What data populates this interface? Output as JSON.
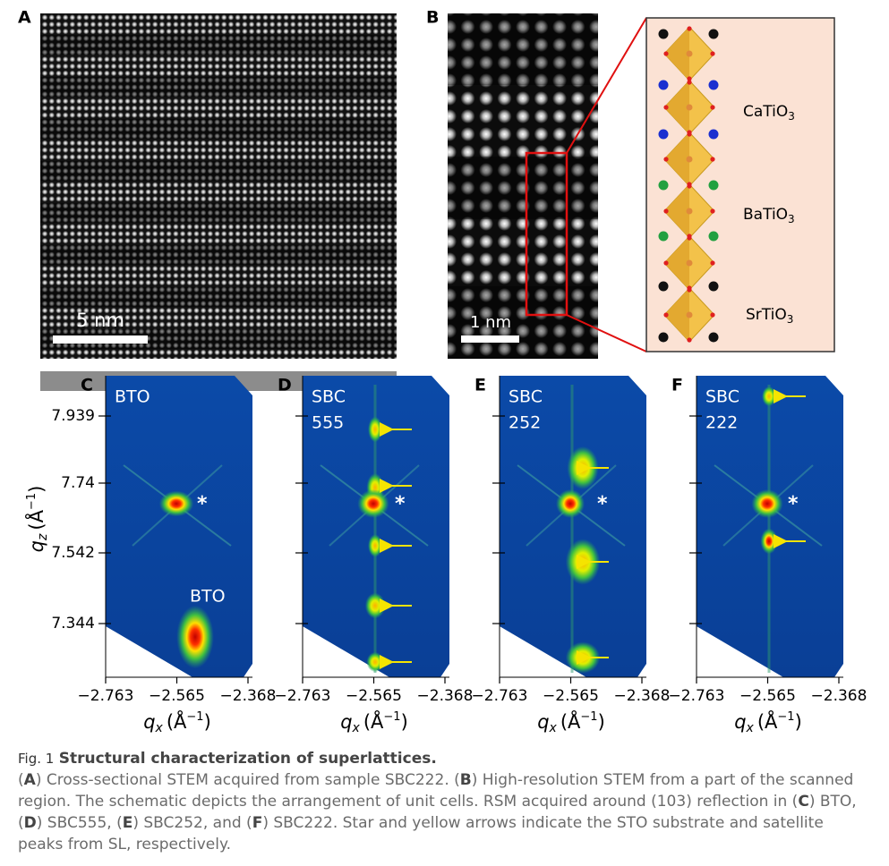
{
  "panels": {
    "A": {
      "label": "A",
      "scale_bar": "5 nm"
    },
    "B": {
      "label": "B",
      "scale_bar": "1 nm"
    }
  },
  "schematic": {
    "layers": [
      {
        "formula": "CaTiO",
        "subscript": "3"
      },
      {
        "formula": "BaTiO",
        "subscript": "3"
      },
      {
        "formula": "SrTiO",
        "subscript": "3"
      }
    ]
  },
  "rsm": {
    "x_axis_label": {
      "symbol": "q",
      "subscript": "x",
      "unit_open": "(Å",
      "unit_exp": "−1",
      "unit_close": ")"
    },
    "y_axis_label": {
      "symbol": "q",
      "subscript": "z",
      "unit_open": "(Å",
      "unit_exp": "−1",
      "unit_close": ")"
    },
    "x_ticks": [
      "−2.763",
      "−2.565",
      "−2.368"
    ],
    "y_ticks": [
      "7.939",
      "7.74",
      "7.542",
      "7.344"
    ],
    "star": "*",
    "panels": [
      {
        "label": "C",
        "sample": [
          "BTO"
        ],
        "peak_label": "BTO"
      },
      {
        "label": "D",
        "sample": [
          "SBC",
          "555"
        ]
      },
      {
        "label": "E",
        "sample": [
          "SBC",
          "252"
        ]
      },
      {
        "label": "F",
        "sample": [
          "SBC",
          "222"
        ]
      }
    ]
  },
  "caption": {
    "fig": "Fig. 1",
    "title": "Structural characterization of superlattices.",
    "body": [
      "(",
      "A",
      ") Cross-sectional STEM acquired from sample SBC222. (",
      "B",
      ") High-resolution STEM from a part of the scanned region. The schematic depicts the arrangement of unit cells. RSM acquired around (103) reflection in (",
      "C",
      ") BTO, (",
      "D",
      ") SBC555, (",
      "E",
      ") SBC252, and (",
      "F",
      ") SBC222. Star and yellow arrows indicate the STO substrate and satellite peaks from SL, respectively."
    ]
  }
}
